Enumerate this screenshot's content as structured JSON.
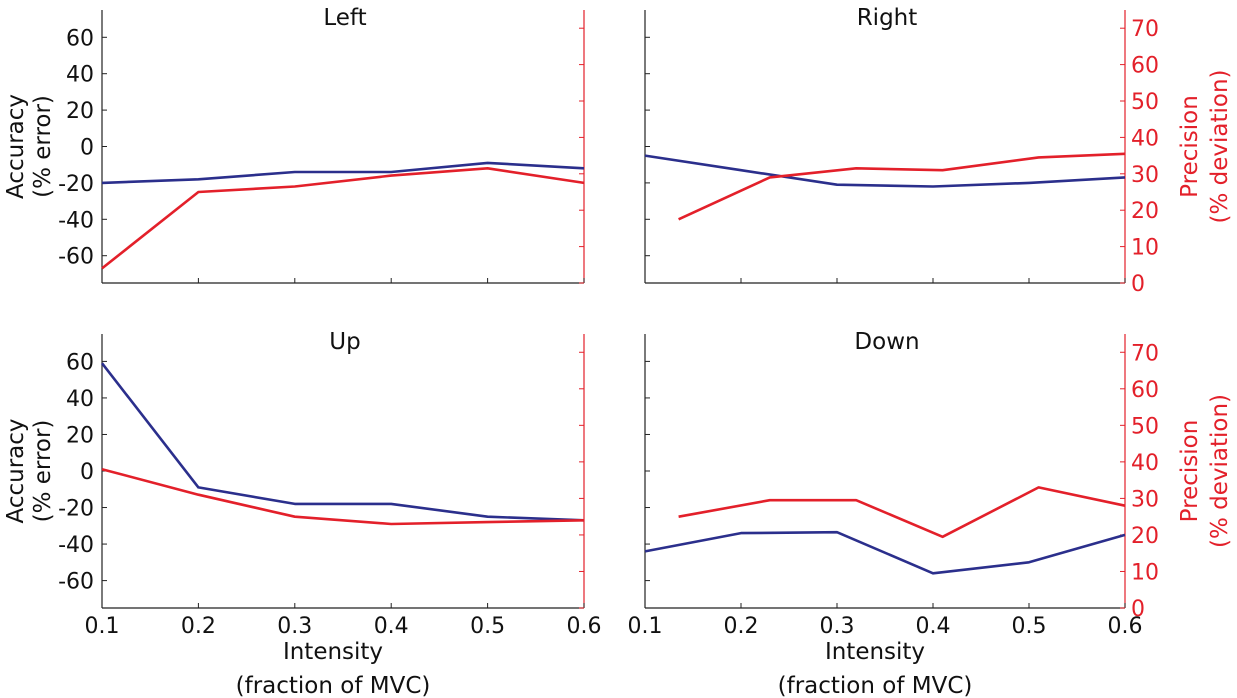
{
  "colors": {
    "accuracy": "#2b2f8c",
    "precision": "#e3202a",
    "axis_left": "#222222",
    "axis_right": "#e3202a"
  },
  "chart_data": [
    {
      "type": "line",
      "title": "Left",
      "x_ticks": [],
      "left_ylabel": [
        "Accuracy",
        "(% error)"
      ],
      "left_ylim": [
        -75,
        75
      ],
      "left_ticks": [
        60,
        40,
        20,
        0,
        -20,
        -40,
        -60
      ],
      "right_ylabel": [],
      "right_ylim": [
        0,
        75
      ],
      "right_ticks": [],
      "xlim": [
        0.1,
        0.6
      ],
      "series": [
        {
          "axis": "left",
          "x": [
            0.1,
            0.2,
            0.3,
            0.4,
            0.5,
            0.6
          ],
          "y": [
            -20,
            -18,
            -14,
            -14,
            -9,
            -12
          ]
        },
        {
          "axis": "right",
          "x": [
            0.1,
            0.2,
            0.3,
            0.4,
            0.5,
            0.6
          ],
          "y": [
            4,
            25,
            26.5,
            29.5,
            31.5,
            27.5
          ]
        }
      ]
    },
    {
      "type": "line",
      "title": "Right",
      "x_ticks": [],
      "left_ylabel": [],
      "left_ylim": [
        -75,
        75
      ],
      "left_ticks": [],
      "right_ylabel": [
        "Precision",
        "(% deviation)"
      ],
      "right_ylim": [
        0,
        75
      ],
      "right_ticks": [
        0,
        10,
        20,
        30,
        40,
        50,
        60,
        70
      ],
      "xlim": [
        0.1,
        0.6
      ],
      "series": [
        {
          "axis": "left",
          "x": [
            0.1,
            0.2,
            0.3,
            0.4,
            0.5,
            0.6
          ],
          "y": [
            -5,
            -13,
            -21,
            -22,
            -20,
            -17
          ]
        },
        {
          "axis": "right",
          "x": [
            0.135,
            0.23,
            0.32,
            0.41,
            0.51,
            0.6
          ],
          "y": [
            17.5,
            29,
            31.5,
            31,
            34.5,
            35.5
          ]
        }
      ]
    },
    {
      "type": "line",
      "title": "Up",
      "x_ticks": [
        0.1,
        0.2,
        0.3,
        0.4,
        0.5,
        0.6
      ],
      "xlabel": [
        "Intensity",
        "(fraction of MVC)"
      ],
      "left_ylabel": [
        "Accuracy",
        "(% error)"
      ],
      "left_ylim": [
        -75,
        75
      ],
      "left_ticks": [
        60,
        40,
        20,
        0,
        -20,
        -40,
        -60
      ],
      "right_ylabel": [],
      "right_ylim": [
        0,
        75
      ],
      "right_ticks": [],
      "xlim": [
        0.1,
        0.6
      ],
      "series": [
        {
          "axis": "left",
          "x": [
            0.1,
            0.2,
            0.3,
            0.4,
            0.5,
            0.6
          ],
          "y": [
            59,
            -9,
            -18,
            -18,
            -25,
            -27
          ]
        },
        {
          "axis": "right",
          "x": [
            0.1,
            0.2,
            0.3,
            0.4,
            0.5,
            0.6
          ],
          "y": [
            38,
            31,
            25,
            23,
            23.5,
            24
          ]
        }
      ]
    },
    {
      "type": "line",
      "title": "Down",
      "x_ticks": [
        0.1,
        0.2,
        0.3,
        0.4,
        0.5,
        0.6
      ],
      "xlabel": [
        "Intensity",
        "(fraction of MVC)"
      ],
      "left_ylabel": [],
      "left_ylim": [
        -75,
        75
      ],
      "left_ticks": [],
      "right_ylabel": [
        "Precision",
        "(% deviation)"
      ],
      "right_ylim": [
        0,
        75
      ],
      "right_ticks": [
        0,
        10,
        20,
        30,
        40,
        50,
        60,
        70
      ],
      "xlim": [
        0.1,
        0.6
      ],
      "series": [
        {
          "axis": "left",
          "x": [
            0.1,
            0.2,
            0.3,
            0.4,
            0.5,
            0.6
          ],
          "y": [
            -44,
            -34,
            -33.5,
            -56,
            -50,
            -35
          ]
        },
        {
          "axis": "right",
          "x": [
            0.135,
            0.23,
            0.32,
            0.41,
            0.51,
            0.6
          ],
          "y": [
            25,
            29.5,
            29.5,
            19.5,
            33,
            28
          ]
        }
      ]
    }
  ]
}
